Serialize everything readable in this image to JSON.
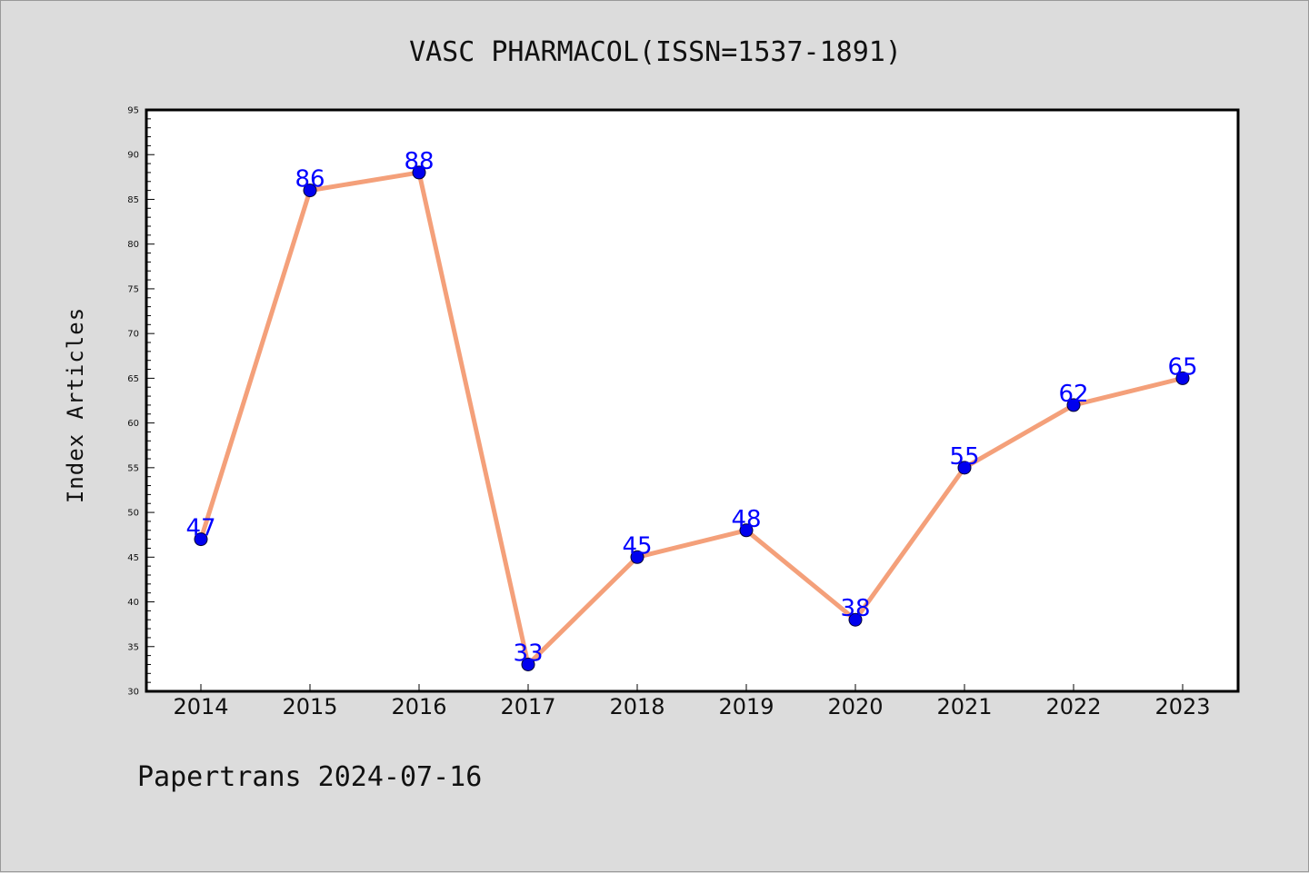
{
  "chart_data": {
    "type": "line",
    "title": "VASC PHARMACOL(ISSN=1537-1891)",
    "ylabel": "Index Articles",
    "xlabel": "",
    "categories": [
      "2014",
      "2015",
      "2016",
      "2017",
      "2018",
      "2019",
      "2020",
      "2021",
      "2022",
      "2023"
    ],
    "values": [
      47,
      86,
      88,
      33,
      45,
      48,
      38,
      55,
      62,
      65
    ],
    "ylim": [
      30,
      95
    ],
    "yticks": [
      30,
      35,
      40,
      45,
      50,
      55,
      60,
      65,
      70,
      75,
      80,
      85,
      90,
      95
    ],
    "line_color": "#f4a07a",
    "marker_color": "#0000ee",
    "label_color": "#0000ff",
    "grid": false,
    "legend": "none"
  },
  "footer": {
    "text": "Papertrans 2024-07-16"
  }
}
